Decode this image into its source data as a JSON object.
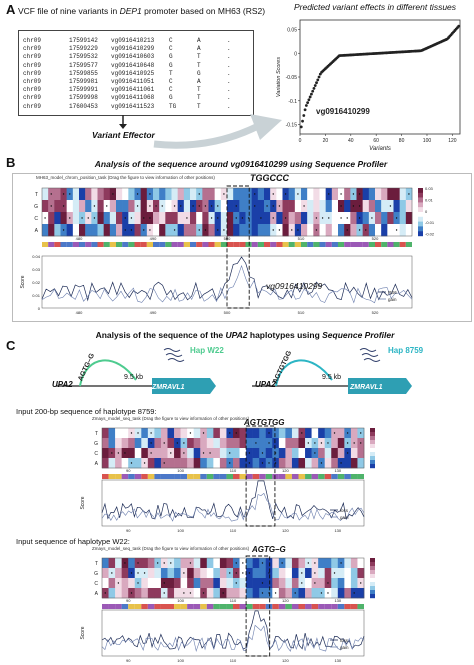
{
  "panelA": {
    "label": "A",
    "vcf_title_pre": "VCF file of nine variants in ",
    "vcf_title_gene": "DEP1",
    "vcf_title_post": " promoter based on MH63 (RS2)",
    "vcf_rows": [
      [
        "chr09",
        "17599142",
        "vg0916410213",
        "C",
        "A",
        "."
      ],
      [
        "chr09",
        "17599229",
        "vg0916410299",
        "C",
        "A",
        "."
      ],
      [
        "chr09",
        "17599532",
        "vg0916410603",
        "G",
        "T",
        "."
      ],
      [
        "chr09",
        "17599577",
        "vg0916410648",
        "G",
        "T",
        "."
      ],
      [
        "chr09",
        "17599855",
        "vg0916410925",
        "T",
        "G",
        "."
      ],
      [
        "chr09",
        "17599981",
        "vg0916411051",
        "C",
        "A",
        "."
      ],
      [
        "chr09",
        "17599991",
        "vg0916411061",
        "C",
        "T",
        "."
      ],
      [
        "chr09",
        "17599998",
        "vg0916411068",
        "G",
        "T",
        "."
      ],
      [
        "chr09",
        "17600453",
        "vg0916411523",
        "TG",
        "T",
        "."
      ]
    ],
    "effector_label": "Variant Effector",
    "plot_title": "Predicted variant effects in different tissues",
    "ylabel": "Variation Scores",
    "xlabel": "Variants",
    "yticks": [
      "0.05",
      "0",
      "-0.05",
      "-0.1",
      "-0.15"
    ],
    "xticks": [
      "0",
      "20",
      "40",
      "60",
      "80",
      "100",
      "120"
    ],
    "callout": "vg0916410299"
  },
  "panelB": {
    "label": "B",
    "title": "Analysis of the sequence around vg0916410299 using Sequence Profiler",
    "caption": "MH63_model_chrom_position_task  (Drag the figure to view information of other positions)",
    "motif": "TGGCCC",
    "rows": [
      "T",
      "G",
      "C",
      "A"
    ],
    "rows_title": "Nucleotide",
    "heat_xticks": [
      "480",
      "490",
      "500",
      "510",
      "520"
    ],
    "legend_ticks": [
      "0.03",
      "0.01",
      "0",
      "-0.01",
      "-0.02"
    ],
    "callout": "vg0916410299",
    "score_label": "Score",
    "score_yticks": [
      "0.04",
      "0.03",
      "0.02",
      "0.01",
      "0"
    ],
    "line_xticks": [
      "480",
      "490",
      "500",
      "510",
      "520"
    ],
    "legend": [
      "RS6",
      "gain"
    ]
  },
  "panelC": {
    "label": "C",
    "title_pre": "Analysis of the sequence of the ",
    "title_gene": "UPA2",
    "title_mid": " haplotypes using ",
    "title_tool": "Sequence Profiler",
    "hap1_name": "Hap W22",
    "hap2_name": "Hap 8759",
    "hap1_seq": "AGTG–G",
    "hap2_seq": "AGTGTGG",
    "distance": "9.5 kb",
    "gene": "UPA2",
    "promoter_gene": "ZMRAVL1",
    "sub1": "Input 200-bp sequence of haplotype 8759:",
    "sub1_caption": "Zmays_model_seq_task  (Drag the figure to view information of other positions)",
    "sub1_motif": "AGTGTGG",
    "sub2": "Input sequence of haplotype W22:",
    "sub2_caption": "Zmays_model_seq_task  (Drag the figure to view information of other positions)",
    "sub2_motif": "AGTG–G",
    "score_label": "Score",
    "legend1": [
      "loss",
      "gain"
    ],
    "legend2": [
      "loss",
      "gain"
    ],
    "xticks": [
      "90",
      "100",
      "110",
      "120",
      "130"
    ]
  },
  "colors": {
    "heat_high": "#6b1d3d",
    "heat_low": "#1a3fa8",
    "teal": "#2cb5c4",
    "green": "#4ecb8f",
    "line_dark": "#1b2a55"
  }
}
